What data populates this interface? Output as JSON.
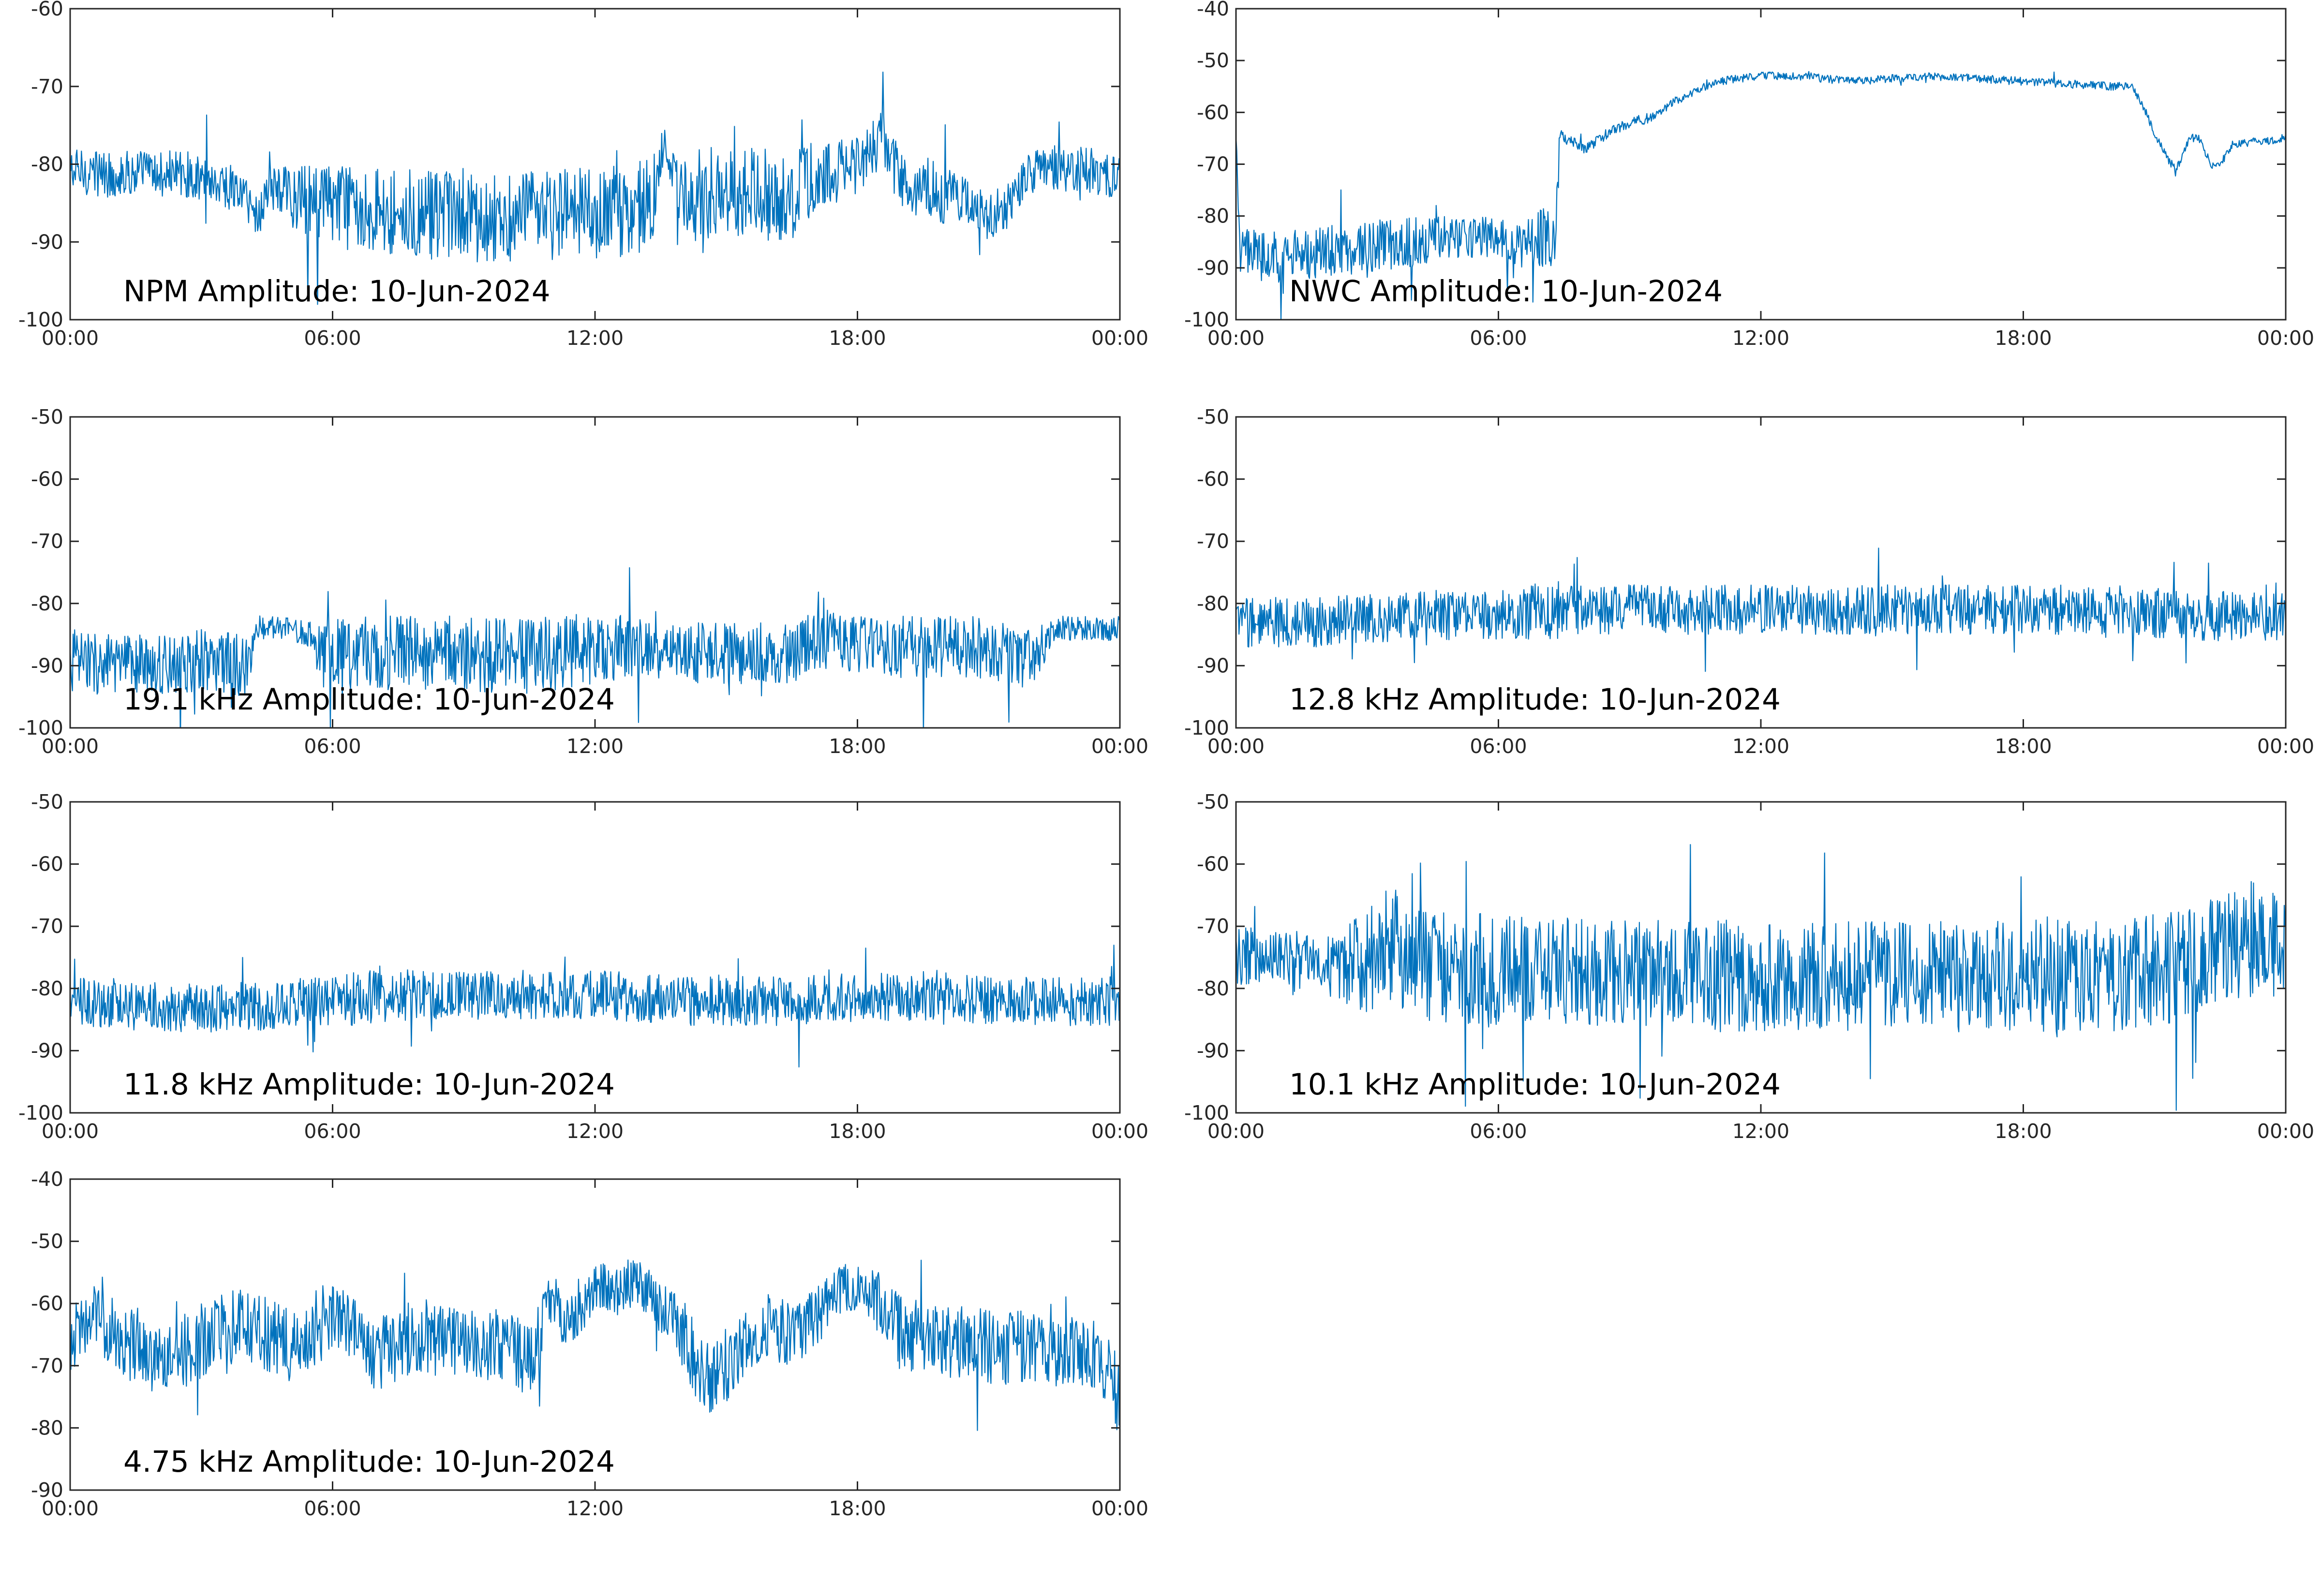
{
  "figure": {
    "background": "#ffffff",
    "line_color": "#0072BD",
    "axis_color": "#262626"
  },
  "chart_data": [
    {
      "type": "line",
      "title": "NPM Amplitude: 10-Jun-2024",
      "x_ticks": [
        "00:00",
        "06:00",
        "12:00",
        "18:00",
        "00:00"
      ],
      "xlim": [
        0,
        24
      ],
      "ylim": [
        -100,
        -60
      ],
      "y_ticks": [
        -60,
        -70,
        -80,
        -90,
        -100
      ],
      "series": [
        {
          "x": [
            0,
            0.5,
            1,
            1.5,
            2,
            2.5,
            3,
            3.5,
            4,
            4.3,
            4.5,
            4.8,
            5,
            5.5,
            6,
            6.5,
            7,
            7.5,
            8,
            8.5,
            9,
            9.5,
            10,
            10.5,
            11,
            11.5,
            12,
            12.5,
            13,
            13.3,
            13.6,
            13.9,
            14.2,
            14.5,
            15,
            15.5,
            16,
            16.5,
            17,
            17.5,
            18,
            18.3,
            18.6,
            18.9,
            19.2,
            19.5,
            20,
            20.5,
            21,
            21.5,
            22,
            22.5,
            23,
            23.5,
            24
          ],
          "y": [
            -81,
            -81,
            -81.5,
            -81,
            -81.5,
            -81,
            -82,
            -82.5,
            -84,
            -87,
            -83,
            -83.5,
            -84,
            -85,
            -85,
            -85,
            -86,
            -86,
            -86.5,
            -87,
            -86.5,
            -87,
            -86.5,
            -87,
            -86.5,
            -86,
            -86.5,
            -86,
            -85.5,
            -85,
            -76,
            -86,
            -84,
            -84,
            -83.5,
            -83,
            -84,
            -84,
            -82,
            -81,
            -80,
            -78,
            -77,
            -81,
            -83,
            -83,
            -84,
            -85,
            -87,
            -85,
            -81,
            -80.5,
            -80.5,
            -81,
            -81.5
          ],
          "band": [
            3,
            3,
            3,
            3,
            3,
            3,
            3,
            3,
            3,
            3,
            3,
            4,
            4,
            5,
            5,
            5,
            6,
            6,
            6,
            6,
            6,
            6,
            6,
            6,
            6,
            6,
            6,
            6,
            6,
            6,
            2,
            6,
            6,
            6,
            6,
            6,
            6,
            6,
            5,
            4,
            4,
            4,
            4,
            4,
            4,
            4,
            4,
            3,
            3,
            3,
            3,
            3,
            3,
            3,
            3
          ]
        }
      ]
    },
    {
      "type": "line",
      "title": "NWC Amplitude: 10-Jun-2024",
      "x_ticks": [
        "00:00",
        "06:00",
        "12:00",
        "18:00",
        "00:00"
      ],
      "xlim": [
        0,
        24
      ],
      "ylim": [
        -100,
        -40
      ],
      "y_ticks": [
        -40,
        -50,
        -60,
        -70,
        -80,
        -90,
        -100
      ],
      "series": [
        {
          "x": [
            0,
            0.1,
            0.2,
            1,
            2,
            3,
            4,
            5,
            6,
            6.5,
            7,
            7.3,
            7.4,
            7.5,
            8,
            8.5,
            9,
            9.5,
            10,
            10.5,
            11,
            12,
            13,
            14,
            15,
            16,
            17,
            18,
            19,
            20,
            20.5,
            20.8,
            21,
            21.3,
            21.5,
            21.8,
            22,
            22.3,
            22.5,
            22.8,
            23,
            23.5,
            24
          ],
          "y": [
            -65,
            -88,
            -87,
            -88,
            -87,
            -86,
            -85,
            -84,
            -84,
            -86,
            -84,
            -84,
            -64,
            -65,
            -67,
            -64,
            -62,
            -61,
            -58,
            -56,
            -54,
            -53,
            -53,
            -54,
            -53.5,
            -53,
            -53.5,
            -54,
            -54.5,
            -55,
            -55,
            -60,
            -64,
            -69,
            -71,
            -65,
            -65,
            -70,
            -70,
            -66,
            -66,
            -65.5,
            -65
          ],
          "band": [
            1,
            5,
            5,
            5,
            5,
            5,
            5,
            4,
            4,
            4,
            6,
            6,
            1,
            1,
            1,
            1,
            1,
            1,
            0.8,
            0.8,
            0.8,
            0.8,
            0.8,
            0.8,
            0.8,
            0.8,
            0.8,
            0.8,
            0.8,
            0.8,
            0.8,
            0.8,
            0.8,
            0.8,
            0.8,
            0.8,
            0.8,
            0.8,
            0.8,
            0.8,
            0.8,
            0.8,
            0.8
          ]
        }
      ]
    },
    {
      "type": "line",
      "title": "19.1 kHz Amplitude: 10-Jun-2024",
      "x_ticks": [
        "00:00",
        "06:00",
        "12:00",
        "18:00",
        "00:00"
      ],
      "xlim": [
        0,
        24
      ],
      "ylim": [
        -100,
        -50
      ],
      "y_ticks": [
        -50,
        -60,
        -70,
        -80,
        -90,
        -100
      ],
      "series": [
        {
          "x": [
            0,
            1,
            2,
            3,
            4,
            4.3,
            4.5,
            5,
            5.5,
            5.8,
            6,
            7,
            8,
            9,
            10,
            11,
            12,
            13,
            13.5,
            14,
            15,
            16,
            16.5,
            17,
            18,
            19,
            19.5,
            20,
            21,
            21.5,
            22,
            22.5,
            23,
            24
          ],
          "y": [
            -89,
            -90,
            -90,
            -89,
            -90,
            -84,
            -84,
            -84,
            -85,
            -89,
            -88,
            -88,
            -88,
            -88,
            -88.5,
            -88,
            -87,
            -87,
            -89,
            -88,
            -88,
            -88,
            -88,
            -86,
            -86,
            -87,
            -87,
            -87,
            -87,
            -89,
            -89,
            -84,
            -84,
            -84
          ],
          "band": [
            5,
            5,
            5,
            5,
            5,
            2,
            2,
            2,
            2,
            6,
            6,
            6,
            6,
            6,
            6,
            6,
            6,
            5,
            5,
            5,
            5,
            5,
            5,
            5,
            5,
            5,
            5,
            5,
            5,
            5,
            5,
            2,
            2,
            2
          ]
        }
      ]
    },
    {
      "type": "line",
      "title": "12.8 kHz Amplitude: 10-Jun-2024",
      "x_ticks": [
        "00:00",
        "06:00",
        "12:00",
        "18:00",
        "00:00"
      ],
      "xlim": [
        0,
        24
      ],
      "ylim": [
        -100,
        -50
      ],
      "y_ticks": [
        -50,
        -60,
        -70,
        -80,
        -90,
        -100
      ],
      "series": [
        {
          "x": [
            0,
            2,
            4,
            6,
            7,
            8,
            10,
            12,
            14,
            16,
            18,
            20,
            21,
            22,
            24
          ],
          "y": [
            -83,
            -83,
            -82,
            -82,
            -81,
            -81,
            -81,
            -81,
            -81,
            -81,
            -81,
            -81,
            -81.5,
            -82,
            -82
          ],
          "band": [
            4,
            4,
            4,
            4,
            5,
            4,
            4,
            4,
            4,
            4,
            4,
            4,
            4,
            4,
            4
          ]
        }
      ]
    },
    {
      "type": "line",
      "title": "11.8 kHz Amplitude: 10-Jun-2024",
      "x_ticks": [
        "00:00",
        "06:00",
        "12:00",
        "18:00",
        "00:00"
      ],
      "xlim": [
        0,
        24
      ],
      "ylim": [
        -100,
        -50
      ],
      "y_ticks": [
        -50,
        -60,
        -70,
        -80,
        -90,
        -100
      ],
      "series": [
        {
          "x": [
            0,
            2,
            4,
            6,
            7,
            8,
            10,
            12,
            14,
            16,
            18,
            20,
            21,
            22,
            24
          ],
          "y": [
            -82,
            -83,
            -83,
            -82,
            -81,
            -81,
            -81,
            -81,
            -82,
            -82,
            -81.5,
            -81,
            -82,
            -82,
            -82
          ],
          "band": [
            4,
            4,
            4,
            4,
            5,
            4,
            4,
            4,
            4,
            4,
            4,
            4,
            4,
            4,
            4
          ]
        }
      ]
    },
    {
      "type": "line",
      "title": "10.1 kHz Amplitude: 10-Jun-2024",
      "x_ticks": [
        "00:00",
        "06:00",
        "12:00",
        "18:00",
        "00:00"
      ],
      "xlim": [
        0,
        24
      ],
      "ylim": [
        -100,
        -50
      ],
      "y_ticks": [
        -50,
        -60,
        -70,
        -80,
        -90,
        -100
      ],
      "series": [
        {
          "x": [
            0,
            2,
            3,
            3.5,
            4,
            6,
            8,
            10,
            12,
            14,
            16,
            18,
            20,
            22,
            23,
            24
          ],
          "y": [
            -75,
            -76,
            -76,
            -72,
            -76,
            -77,
            -77,
            -78,
            -78,
            -78,
            -78,
            -78,
            -78,
            -76,
            -72,
            -73
          ],
          "band": [
            5,
            5,
            8,
            10,
            9,
            9,
            9,
            9,
            9,
            9,
            9,
            9,
            9,
            9,
            10,
            8
          ]
        }
      ]
    },
    {
      "type": "line",
      "title": "4.75 kHz Amplitude: 10-Jun-2024",
      "x_ticks": [
        "00:00",
        "06:00",
        "12:00",
        "18:00",
        "00:00"
      ],
      "xlim": [
        0,
        24
      ],
      "ylim": [
        -90,
        -40
      ],
      "y_ticks": [
        -40,
        -50,
        -60,
        -70,
        -80,
        -90
      ],
      "series": [
        {
          "x": [
            0,
            0.5,
            1,
            2,
            3,
            4,
            5,
            6,
            7,
            8,
            9,
            10,
            10.5,
            11,
            11.5,
            12,
            12.5,
            13,
            14,
            14.5,
            15,
            16,
            16.5,
            17,
            17.5,
            18,
            18.5,
            19,
            20,
            21,
            22,
            23,
            23.5,
            24
          ],
          "y": [
            -66,
            -62,
            -65,
            -70,
            -66,
            -63,
            -67,
            -62,
            -68,
            -65,
            -67,
            -66,
            -70,
            -60,
            -62,
            -57,
            -58,
            -56,
            -65,
            -72,
            -70,
            -63,
            -66,
            -63,
            -58,
            -57,
            -60,
            -65,
            -66,
            -67,
            -67,
            -68,
            -69,
            -75
          ],
          "band": [
            5,
            5,
            6,
            6,
            6,
            6,
            6,
            6,
            6,
            6,
            6,
            6,
            6,
            5,
            5,
            4,
            4,
            4,
            6,
            6,
            6,
            5,
            6,
            5,
            4,
            4,
            5,
            6,
            6,
            6,
            6,
            6,
            6,
            7
          ]
        }
      ]
    }
  ]
}
